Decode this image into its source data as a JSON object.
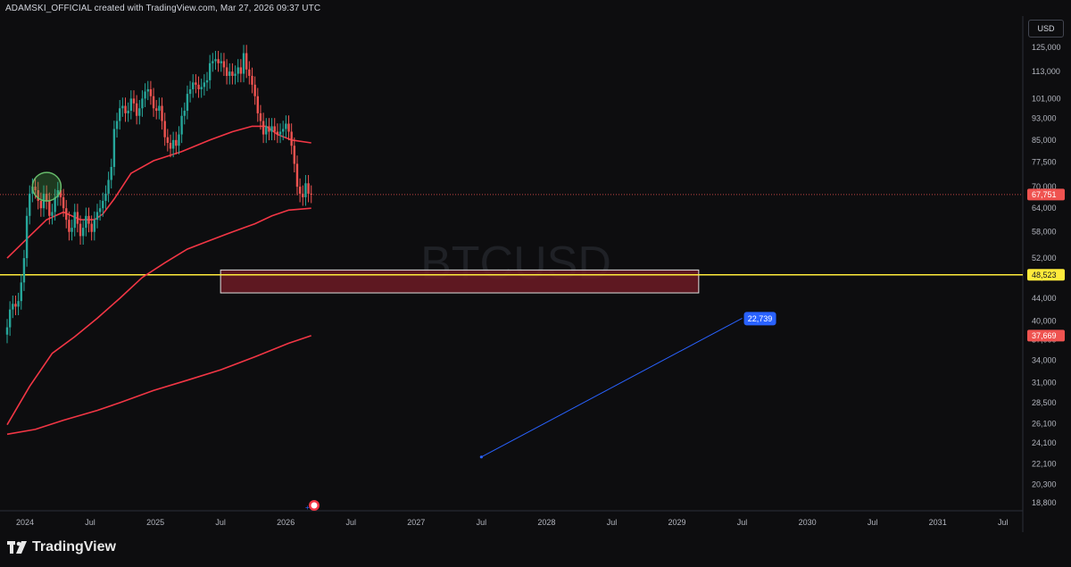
{
  "header": {
    "attribution": "ADAMSKI_OFFICIAL created with TradingView.com, Mar 27, 2026 09:37 UTC"
  },
  "currency": "USD",
  "watermark": "BTCUSD",
  "brand": {
    "name": "TradingView"
  },
  "colors": {
    "background": "#0d0d0f",
    "candle_up": "#26a69a",
    "candle_down": "#ef5350",
    "ma": "#f23645",
    "support_line": "#ffeb3b",
    "zone_fill": "#6d1b24",
    "projection": "#2962ff"
  },
  "chart_data": {
    "type": "candlestick",
    "symbol": "BTCUSD",
    "x_ticks": [
      "2024",
      "Jul",
      "2025",
      "Jul",
      "2026",
      "Jul",
      "2027",
      "Jul",
      "2028",
      "Jul",
      "2029",
      "Jul",
      "2030",
      "Jul",
      "2031",
      "Jul"
    ],
    "y_scale": "log",
    "y_ticks": [
      18800,
      20300,
      22100,
      24100,
      26100,
      28500,
      31000,
      34000,
      37000,
      40000,
      44000,
      48000,
      52000,
      58000,
      64000,
      70000,
      77500,
      85000,
      93000,
      101000,
      113000,
      125000
    ],
    "y_tick_labels": [
      "18,800",
      "20,300",
      "22,100",
      "24,100",
      "26,100",
      "28,500",
      "31,000",
      "34,000",
      "37,000",
      "40,000",
      "44,000",
      "48,000",
      "52,000",
      "58,000",
      "64,000",
      "70,000",
      "77,500",
      "85,000",
      "93,000",
      "101,000",
      "113,000",
      "125,000"
    ],
    "ylim": [
      17800,
      135000
    ],
    "weekly_close": [
      39000,
      42000,
      43000,
      42500,
      43500,
      47000,
      52000,
      62000,
      68000,
      70000,
      69000,
      66000,
      64000,
      68000,
      66000,
      62000,
      63000,
      67000,
      69000,
      67000,
      64000,
      61000,
      58000,
      59000,
      63000,
      60000,
      57000,
      59000,
      62000,
      60000,
      58000,
      61000,
      63000,
      64000,
      66000,
      68000,
      72000,
      76000,
      89000,
      92000,
      97000,
      98000,
      95000,
      96000,
      101000,
      99000,
      94000,
      97000,
      101000,
      104000,
      105000,
      102000,
      97000,
      96000,
      98000,
      92000,
      86000,
      84000,
      82000,
      85000,
      83000,
      87000,
      94000,
      96000,
      103000,
      105000,
      108000,
      107000,
      105000,
      106000,
      108000,
      109000,
      117000,
      118000,
      119000,
      117000,
      118000,
      115000,
      111000,
      113000,
      111000,
      112000,
      115000,
      112000,
      122000,
      114000,
      111000,
      107000,
      102000,
      95000,
      92000,
      87000,
      90000,
      88000,
      90000,
      88000,
      87000,
      88000,
      89000,
      91000,
      88000,
      83000,
      77000,
      70000,
      68000,
      67000,
      71000,
      68000,
      67751
    ],
    "moving_averages": [
      {
        "period": "ma_fast",
        "points": [
          [
            0,
            52000
          ],
          [
            8,
            57000
          ],
          [
            14,
            61000
          ],
          [
            20,
            63000
          ],
          [
            26,
            61000
          ],
          [
            31,
            61000
          ],
          [
            34,
            62500
          ],
          [
            38,
            66500
          ],
          [
            44,
            74000
          ],
          [
            52,
            78000
          ],
          [
            62,
            81000
          ],
          [
            72,
            85000
          ],
          [
            80,
            88000
          ],
          [
            87,
            90000
          ],
          [
            92,
            90000
          ],
          [
            96,
            87000
          ],
          [
            101,
            85000
          ],
          [
            108,
            84000
          ]
        ]
      },
      {
        "period": "ma_200w",
        "points": [
          [
            0,
            26000
          ],
          [
            8,
            30500
          ],
          [
            16,
            35000
          ],
          [
            24,
            37500
          ],
          [
            32,
            40500
          ],
          [
            40,
            44000
          ],
          [
            48,
            48000
          ],
          [
            56,
            51000
          ],
          [
            64,
            54000
          ],
          [
            72,
            56000
          ],
          [
            80,
            58000
          ],
          [
            88,
            60000
          ],
          [
            94,
            62000
          ],
          [
            100,
            63500
          ],
          [
            108,
            64000
          ]
        ]
      },
      {
        "period": "ma_long",
        "points": [
          [
            0,
            25000
          ],
          [
            10,
            25500
          ],
          [
            20,
            26500
          ],
          [
            32,
            27600
          ],
          [
            40,
            28500
          ],
          [
            52,
            30000
          ],
          [
            64,
            31300
          ],
          [
            76,
            32700
          ],
          [
            88,
            34500
          ],
          [
            100,
            36500
          ],
          [
            108,
            37669
          ]
        ]
      }
    ],
    "last_price": 67751,
    "last_price_label": "67,751",
    "support_level": 48523,
    "support_label": "48,523",
    "ma_long_label": "37,669",
    "demand_zone": {
      "low": 45000,
      "high": 49500,
      "start": "2025-07",
      "end": "2029-03"
    },
    "projection": {
      "from": {
        "date": "2027-07",
        "price": 22739
      },
      "to": {
        "date": "2029-07",
        "price": 40500
      },
      "label": "22,739"
    },
    "highlight": {
      "date": "2024-03",
      "price": 70000
    }
  }
}
